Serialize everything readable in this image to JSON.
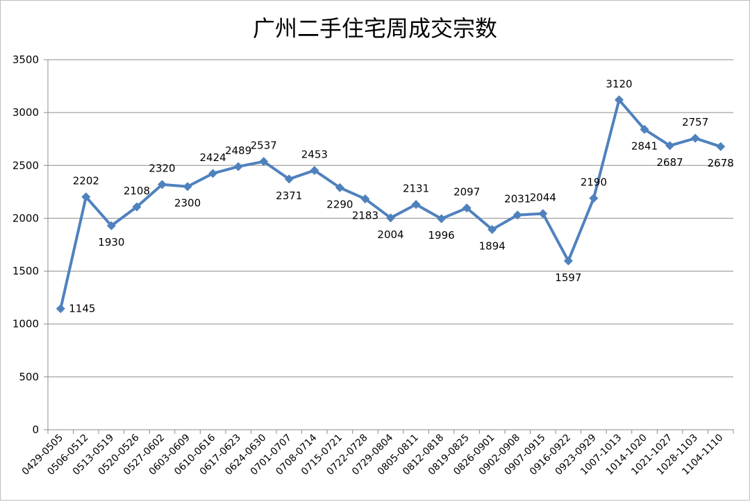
{
  "chart_data": {
    "type": "line",
    "title": "广州二手住宅周成交宗数",
    "xlabel": "",
    "ylabel": "",
    "ylim": [
      0,
      3500
    ],
    "yticks": [
      0,
      500,
      1000,
      1500,
      2000,
      2500,
      3000,
      3500
    ],
    "grid": true,
    "legend": "none",
    "categories": [
      "0429-0505",
      "0506-0512",
      "0513-0519",
      "0520-0526",
      "0527-0602",
      "0603-0609",
      "0610-0616",
      "0617-0623",
      "0624-0630",
      "0701-0707",
      "0708-0714",
      "0715-0721",
      "0722-0728",
      "0729-0804",
      "0805-0811",
      "0812-0818",
      "0819-0825",
      "0826-0901",
      "0902-0908",
      "0907-0915",
      "0916-0922",
      "0923-0929",
      "1007-1013",
      "1014-1020",
      "1021-1027",
      "1028-1103",
      "1104-1110"
    ],
    "series": [
      {
        "color": "#4f81bd",
        "values": [
          1145,
          2202,
          1930,
          2108,
          2320,
          2300,
          2424,
          2489,
          2537,
          2371,
          2453,
          2290,
          2183,
          2004,
          2131,
          1996,
          2097,
          1894,
          2031,
          2044,
          1597,
          2190,
          3120,
          2841,
          2687,
          2757,
          2678
        ]
      }
    ]
  }
}
